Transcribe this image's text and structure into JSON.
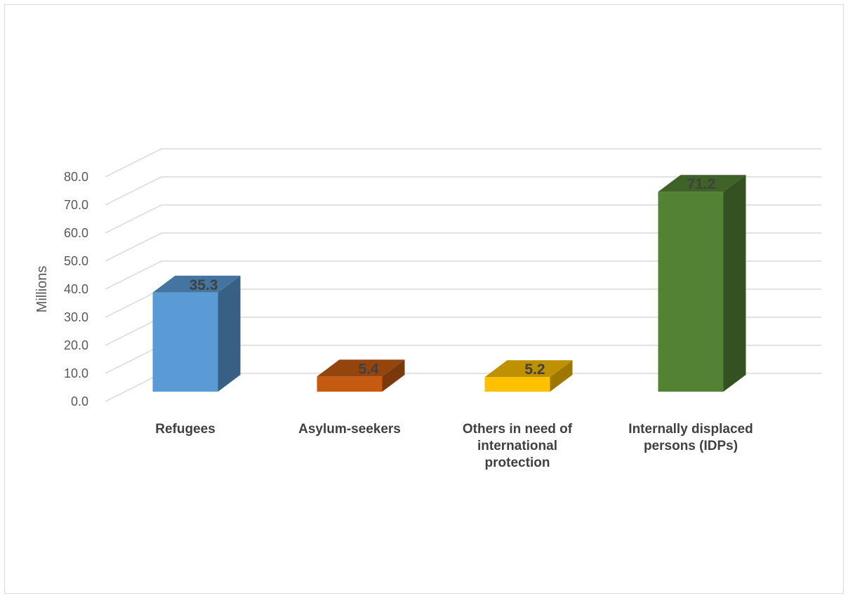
{
  "chart_data": {
    "type": "bar",
    "style": "3d-column",
    "categories": [
      "Refugees",
      "Asylum-seekers",
      "Others in need of international protection",
      "Internally displaced persons (IDPs)"
    ],
    "values": [
      35.3,
      5.4,
      5.2,
      71.2
    ],
    "data_labels": [
      "35.3",
      "5.4",
      "5.2",
      "71.2"
    ],
    "colors": [
      "#5b9bd5",
      "#c55a11",
      "#ffc000",
      "#548235"
    ],
    "title": "",
    "xlabel": "",
    "ylabel": "Millions",
    "ylim": [
      0,
      80
    ],
    "yticks": [
      0,
      10,
      20,
      30,
      40,
      50,
      60,
      70,
      80
    ],
    "ytick_labels": [
      "0.0",
      "10.0",
      "20.0",
      "30.0",
      "40.0",
      "50.0",
      "60.0",
      "70.0",
      "80.0"
    ],
    "grid": true,
    "legend": "none"
  }
}
